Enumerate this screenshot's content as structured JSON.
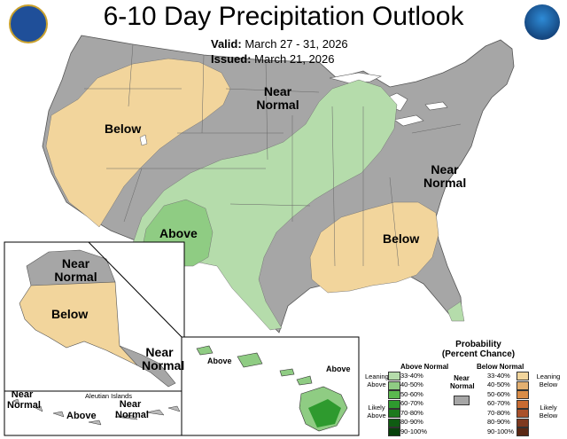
{
  "header": {
    "title": "6-10 Day Precipitation Outlook",
    "valid_label": "Valid:",
    "valid_value": "March 27 - 31, 2026",
    "issued_label": "Issued:",
    "issued_value": "March 21, 2026"
  },
  "logos": {
    "left": "doc-seal-icon",
    "right": "noaa-logo-icon"
  },
  "map_labels": {
    "conus_below_west": "Below",
    "conus_near_normal_north": "Near Normal",
    "conus_above_southwest": "Above",
    "conus_near_normal_east": "Near Normal",
    "conus_below_southeast": "Below",
    "alaska_near_normal": "Near Normal",
    "alaska_below": "Below",
    "alaska_near_normal_se": "Near Normal",
    "aleutian_title": "Aleutian Islands",
    "aleutian_near_normal_left": "Near Normal",
    "aleutian_above": "Above",
    "aleutian_near_normal_right": "Near Normal",
    "hawaii_above_left": "Above",
    "hawaii_above_right": "Above"
  },
  "legend": {
    "title": "Probability",
    "subtitle": "(Percent Chance)",
    "above_header": "Above Normal",
    "below_header": "Below Normal",
    "near_label": "Near Normal",
    "leaning_above": "Leaning Above",
    "likely_above": "Likely Above",
    "leaning_below": "Leaning Below",
    "likely_below": "Likely Below",
    "bins": [
      "33-40%",
      "40-50%",
      "50-60%",
      "60-70%",
      "70-80%",
      "80-90%",
      "90-100%"
    ],
    "above_colors": [
      "#b5dcab",
      "#8fcc83",
      "#5bb84f",
      "#2e9a2e",
      "#1d7a1d",
      "#0f5c12",
      "#08400b"
    ],
    "below_colors": [
      "#f2d59c",
      "#e3b071",
      "#d98c47",
      "#c86b32",
      "#a9512b",
      "#7f3a20",
      "#5a2814"
    ],
    "near_color": "#a6a6a6"
  }
}
